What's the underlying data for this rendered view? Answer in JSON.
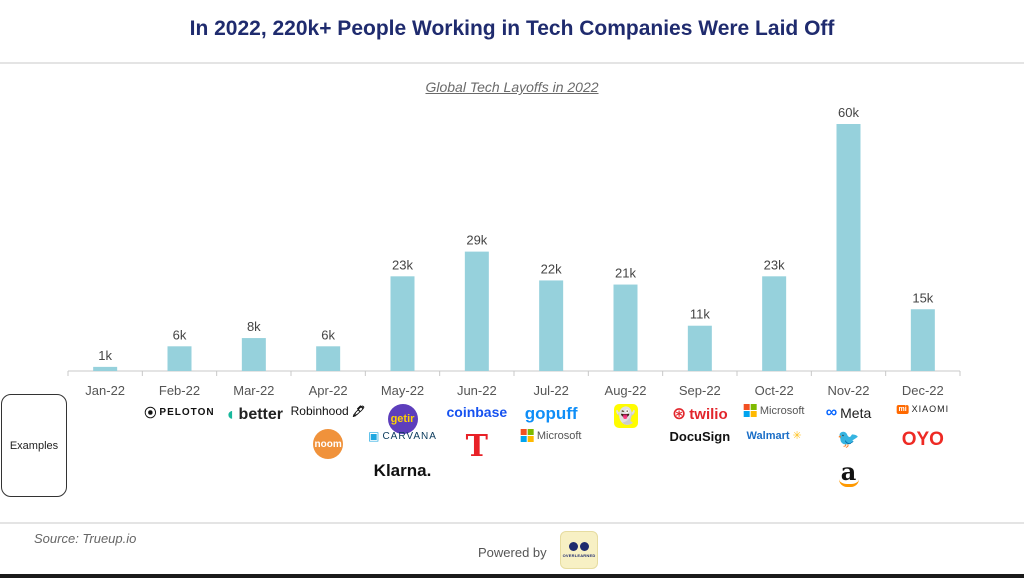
{
  "header": {
    "title": "In 2022, 220k+ People Working in Tech Companies Were Laid Off"
  },
  "examples_label": "Examples",
  "chart_data": {
    "type": "bar",
    "title": "Global Tech Layoffs in 2022",
    "categories": [
      "Jan-22",
      "Feb-22",
      "Mar-22",
      "Apr-22",
      "May-22",
      "Jun-22",
      "Jul-22",
      "Aug-22",
      "Sep-22",
      "Oct-22",
      "Nov-22",
      "Dec-22"
    ],
    "values": [
      1,
      6,
      8,
      6,
      23,
      29,
      22,
      21,
      11,
      23,
      60,
      15
    ],
    "value_labels": [
      "1k",
      "6k",
      "8k",
      "6k",
      "23k",
      "29k",
      "22k",
      "21k",
      "11k",
      "23k",
      "60k",
      "15k"
    ],
    "bar_color": "#96d1dc",
    "ylim": [
      0,
      60
    ],
    "grid": false
  },
  "examples": [
    [],
    [
      "PELOTON"
    ],
    [
      "better"
    ],
    [
      "Robinhood",
      "noom"
    ],
    [
      "getir",
      "CARVANA",
      "Klarna."
    ],
    [
      "coinbase",
      "tesla-logo"
    ],
    [
      "gopuff",
      "Microsoft"
    ],
    [
      "snapchat-logo"
    ],
    [
      "twilio",
      "DocuSign"
    ],
    [
      "Microsoft",
      "Walmart"
    ],
    [
      "Meta",
      "twitter-logo",
      "amazon-logo"
    ],
    [
      "XIAOMI",
      "OYO"
    ]
  ],
  "footer": {
    "source": "Source: Trueup.io",
    "powered_by": "Powered by",
    "badge_text": "OVERLEARNED"
  }
}
